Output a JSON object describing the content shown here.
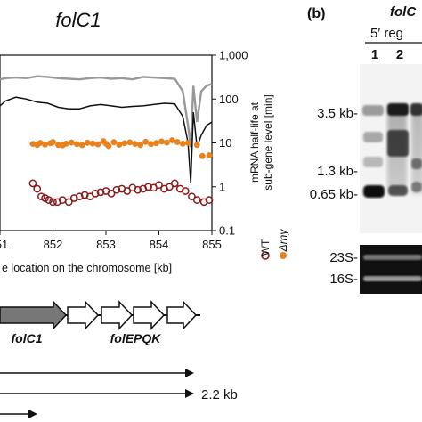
{
  "panel_a": {
    "gene_title": "folC1",
    "y_axis_label_line1": "mRNA half-life at",
    "y_axis_label_line2": "sub-gene level [min]",
    "x_axis_label": "e location on the chromosome [kb]",
    "legend": {
      "wt": "WT",
      "mutant": "Δrny"
    },
    "colors": {
      "grey_line": "#999999",
      "black_line": "#111111",
      "mutant": "#e8821e",
      "wt": "#8b1a1a"
    }
  },
  "chart_data": {
    "type": "scatter",
    "title": "folC1",
    "xlabel": "e location on the chromosome [kb]",
    "ylabel": "mRNA half-life at sub-gene level [min]",
    "xlim": [
      851,
      855
    ],
    "ylim": [
      0.1,
      1000
    ],
    "yscale": "log",
    "x_ticks": [
      "51",
      "852",
      "853",
      "854",
      "855"
    ],
    "y_ticks": [
      "1,000",
      "100",
      "10",
      "1",
      "0.1"
    ],
    "grid": false,
    "legend_position": "right",
    "series": [
      {
        "name": "Δrny",
        "kind": "scatter",
        "marker": "filled-circle",
        "color": "#e8821e",
        "x": [
          851.62,
          851.7,
          851.76,
          851.85,
          851.95,
          852.0,
          852.1,
          852.18,
          852.25,
          852.35,
          852.45,
          852.55,
          852.65,
          852.75,
          852.85,
          852.95,
          853.0,
          853.05,
          853.15,
          853.25,
          853.35,
          853.45,
          853.55,
          853.65,
          853.75,
          853.85,
          853.95,
          854.05,
          854.15,
          854.25,
          854.35,
          854.45,
          854.55,
          854.72,
          854.82,
          854.95
        ],
        "y": [
          9.5,
          9.0,
          10.0,
          9.2,
          9.8,
          10.5,
          9.0,
          8.8,
          9.6,
          10.2,
          9.4,
          8.9,
          10.1,
          9.7,
          9.3,
          11.0,
          9.6,
          8.5,
          10.4,
          9.1,
          9.8,
          10.3,
          9.5,
          9.0,
          10.6,
          9.4,
          9.9,
          10.8,
          10.2,
          11.5,
          10.5,
          9.6,
          10.0,
          9.0,
          5.0,
          5.2
        ]
      },
      {
        "name": "WT",
        "kind": "scatter",
        "marker": "open-circle",
        "color": "#8b1a1a",
        "x": [
          851.62,
          851.7,
          851.78,
          851.85,
          851.92,
          852.0,
          852.08,
          852.18,
          852.3,
          852.4,
          852.5,
          852.6,
          852.7,
          852.8,
          852.9,
          853.0,
          853.1,
          853.2,
          853.3,
          853.4,
          853.5,
          853.6,
          853.7,
          853.8,
          853.9,
          854.0,
          854.1,
          854.2,
          854.3,
          854.4,
          854.5,
          854.62,
          854.72,
          854.85,
          854.95
        ],
        "y": [
          1.2,
          0.9,
          0.6,
          0.55,
          0.5,
          0.45,
          0.45,
          0.5,
          0.45,
          0.55,
          0.6,
          0.65,
          0.6,
          0.7,
          0.75,
          0.8,
          0.7,
          0.85,
          0.9,
          0.8,
          0.95,
          0.85,
          0.9,
          1.0,
          0.95,
          1.1,
          0.9,
          1.0,
          1.2,
          0.9,
          0.8,
          0.6,
          0.5,
          0.45,
          0.5
        ]
      },
      {
        "name": "",
        "kind": "line",
        "color": "#999999",
        "x": [
          851.0,
          851.1,
          851.3,
          851.5,
          851.7,
          851.9,
          852.1,
          852.3,
          852.5,
          852.7,
          852.9,
          853.1,
          853.3,
          853.5,
          853.7,
          853.9,
          854.1,
          854.3,
          854.45,
          854.55,
          854.6,
          854.65,
          854.72,
          854.8,
          854.9,
          855.0
        ],
        "y": [
          280,
          300,
          310,
          300,
          330,
          320,
          300,
          290,
          280,
          300,
          310,
          290,
          300,
          280,
          320,
          310,
          300,
          290,
          150,
          25,
          8,
          200,
          30,
          150,
          200,
          220
        ]
      },
      {
        "name": "",
        "kind": "line",
        "color": "#111111",
        "x": [
          851.0,
          851.1,
          851.3,
          851.5,
          851.7,
          851.9,
          852.1,
          852.3,
          852.5,
          852.7,
          852.9,
          853.1,
          853.3,
          853.5,
          853.7,
          853.9,
          854.1,
          854.3,
          854.45,
          854.55,
          854.6,
          854.65,
          854.72,
          854.8,
          854.9,
          855.0
        ],
        "y": [
          70,
          90,
          110,
          100,
          85,
          80,
          65,
          60,
          60,
          70,
          75,
          70,
          65,
          68,
          70,
          75,
          80,
          78,
          40,
          10,
          1.2,
          50,
          8,
          15,
          25,
          30
        ]
      }
    ]
  },
  "panel_b": {
    "panel_label": "(b)",
    "title_line1": "folC",
    "title_line2": "5′ reg",
    "lanes": [
      "1",
      "2",
      ""
    ],
    "size_markers": [
      "3.5 kb-",
      "1.3 kb-",
      "0.65 kb-"
    ],
    "rrna_markers": [
      "23S-",
      "16S-"
    ]
  },
  "gene_map": {
    "genes": [
      {
        "label": "folC1",
        "fill": "#777777"
      },
      {
        "label": "folEPQK",
        "fill": "#ffffff"
      }
    ],
    "transcript_label": "2.2 kb"
  }
}
